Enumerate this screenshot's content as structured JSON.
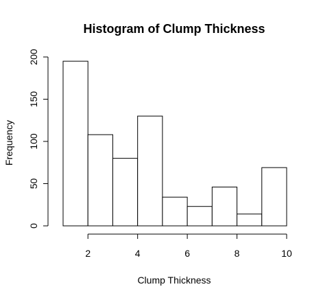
{
  "chart_data": {
    "type": "bar",
    "title": "Histogram of Clump Thickness",
    "xlabel": "Clump Thickness",
    "ylabel": "Frequency",
    "bins": [
      [
        1,
        2
      ],
      [
        2,
        3
      ],
      [
        3,
        4
      ],
      [
        4,
        5
      ],
      [
        5,
        6
      ],
      [
        6,
        7
      ],
      [
        7,
        8
      ],
      [
        8,
        9
      ],
      [
        9,
        10
      ]
    ],
    "values": [
      195,
      108,
      80,
      130,
      34,
      23,
      46,
      14,
      69
    ],
    "xlim": [
      1,
      10
    ],
    "ylim": [
      0,
      200
    ],
    "x_ticks": [
      2,
      4,
      6,
      8,
      10
    ],
    "x_tick_labels": [
      "2",
      "4",
      "6",
      "8",
      "10"
    ],
    "y_ticks": [
      0,
      50,
      100,
      150,
      200
    ],
    "y_tick_labels": [
      "0",
      "50",
      "100",
      "150",
      "200"
    ],
    "grid": false,
    "bar_fill": "#ffffff",
    "bar_stroke": "#000000"
  }
}
